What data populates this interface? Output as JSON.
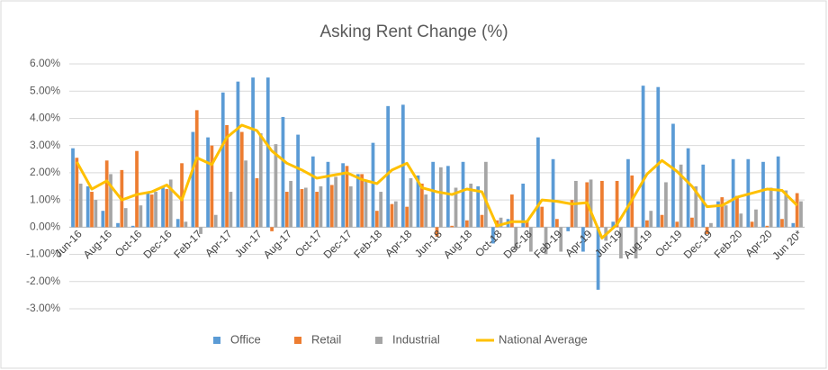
{
  "chart_data": {
    "type": "bar_line",
    "title": "Asking Rent Change (%)",
    "categories": [
      "Jun-16",
      null,
      "Aug-16",
      null,
      "Oct-16",
      null,
      "Dec-16",
      null,
      "Feb-17",
      null,
      "Apr-17",
      null,
      "Jun-17",
      null,
      "Aug-17",
      null,
      "Oct-17",
      null,
      "Dec-17",
      null,
      "Feb-18",
      null,
      "Apr-18",
      null,
      "Jun-18",
      null,
      "Aug-18",
      null,
      "Oct-18",
      null,
      "Dec-18",
      null,
      "Feb-19",
      null,
      "Apr-19",
      null,
      "Jun-19",
      null,
      "Aug-19",
      null,
      "Oct-19",
      null,
      "Dec-19",
      null,
      "Feb-20",
      null,
      "Apr-20",
      null,
      "Jun 20*"
    ],
    "series": [
      {
        "name": "Office",
        "type": "bar",
        "color": "#5b9bd5",
        "values": [
          2.9,
          1.5,
          0.6,
          0.15,
          0.05,
          1.25,
          1.5,
          0.3,
          3.5,
          3.3,
          4.95,
          5.35,
          5.5,
          5.5,
          4.05,
          3.4,
          2.6,
          2.4,
          2.35,
          1.95,
          3.1,
          4.45,
          4.5,
          1.9,
          2.4,
          2.25,
          2.4,
          1.5,
          -0.6,
          0.3,
          1.6,
          3.3,
          2.5,
          -0.15,
          -0.9,
          -2.3,
          0.2,
          2.5,
          5.2,
          5.15,
          3.8,
          2.9,
          2.3,
          0.95,
          2.5,
          2.5,
          2.4,
          2.6,
          0.15
        ]
      },
      {
        "name": "Retail",
        "type": "bar",
        "color": "#ed7d31",
        "values": [
          2.55,
          1.3,
          2.45,
          2.1,
          2.8,
          1.2,
          1.4,
          2.35,
          4.3,
          3.0,
          3.75,
          3.5,
          1.8,
          -0.15,
          1.3,
          1.4,
          1.3,
          1.55,
          2.25,
          1.95,
          0.6,
          0.85,
          0.75,
          1.6,
          -0.35,
          0.05,
          0.25,
          0.45,
          0.25,
          1.2,
          0.25,
          0.75,
          0.3,
          1.0,
          1.65,
          1.7,
          1.7,
          1.9,
          0.25,
          0.45,
          0.2,
          0.35,
          -0.25,
          1.1,
          1.15,
          0.2,
          0.05,
          0.3,
          1.25
        ]
      },
      {
        "name": "Industrial",
        "type": "bar",
        "color": "#a5a5a5",
        "values": [
          1.6,
          1.0,
          1.95,
          0.7,
          0.8,
          1.3,
          1.75,
          0.2,
          -0.25,
          0.45,
          1.3,
          2.45,
          3.45,
          3.05,
          1.7,
          1.45,
          1.5,
          1.85,
          1.5,
          1.75,
          1.3,
          0.95,
          1.8,
          1.2,
          2.2,
          1.45,
          1.6,
          2.4,
          0.35,
          -0.85,
          -0.9,
          -1.0,
          -0.9,
          1.7,
          1.75,
          -0.5,
          -1.15,
          -1.15,
          0.6,
          1.65,
          2.3,
          1.5,
          0.15,
          0.8,
          0.5,
          0.65,
          1.45,
          1.35,
          0.95
        ]
      },
      {
        "name": "National Average",
        "type": "line",
        "color": "#ffc000",
        "values": [
          2.4,
          1.4,
          1.7,
          1.0,
          1.2,
          1.3,
          1.55,
          1.0,
          2.55,
          2.3,
          3.3,
          3.75,
          3.55,
          2.8,
          2.35,
          2.1,
          1.8,
          1.9,
          2.0,
          1.75,
          1.6,
          2.1,
          2.35,
          1.45,
          1.3,
          1.2,
          1.4,
          1.3,
          0.05,
          0.2,
          0.2,
          1.0,
          0.95,
          0.85,
          0.9,
          -0.4,
          0.1,
          1.0,
          1.95,
          2.45,
          2.05,
          1.5,
          0.75,
          0.8,
          1.1,
          1.25,
          1.4,
          1.35,
          0.8
        ]
      }
    ],
    "ylim": [
      -3,
      6
    ],
    "yticks": [
      {
        "value": -3,
        "label": "-3.00%"
      },
      {
        "value": -2,
        "label": "-2.00%"
      },
      {
        "value": -1,
        "label": "-1.00%"
      },
      {
        "value": 0,
        "label": "0.00%"
      },
      {
        "value": 1,
        "label": "1.00%"
      },
      {
        "value": 2,
        "label": "2.00%"
      },
      {
        "value": 3,
        "label": "3.00%"
      },
      {
        "value": 4,
        "label": "4.00%"
      },
      {
        "value": 5,
        "label": "5.00%"
      },
      {
        "value": 6,
        "label": "6.00%"
      }
    ],
    "grid": true,
    "legend": "bottom"
  }
}
